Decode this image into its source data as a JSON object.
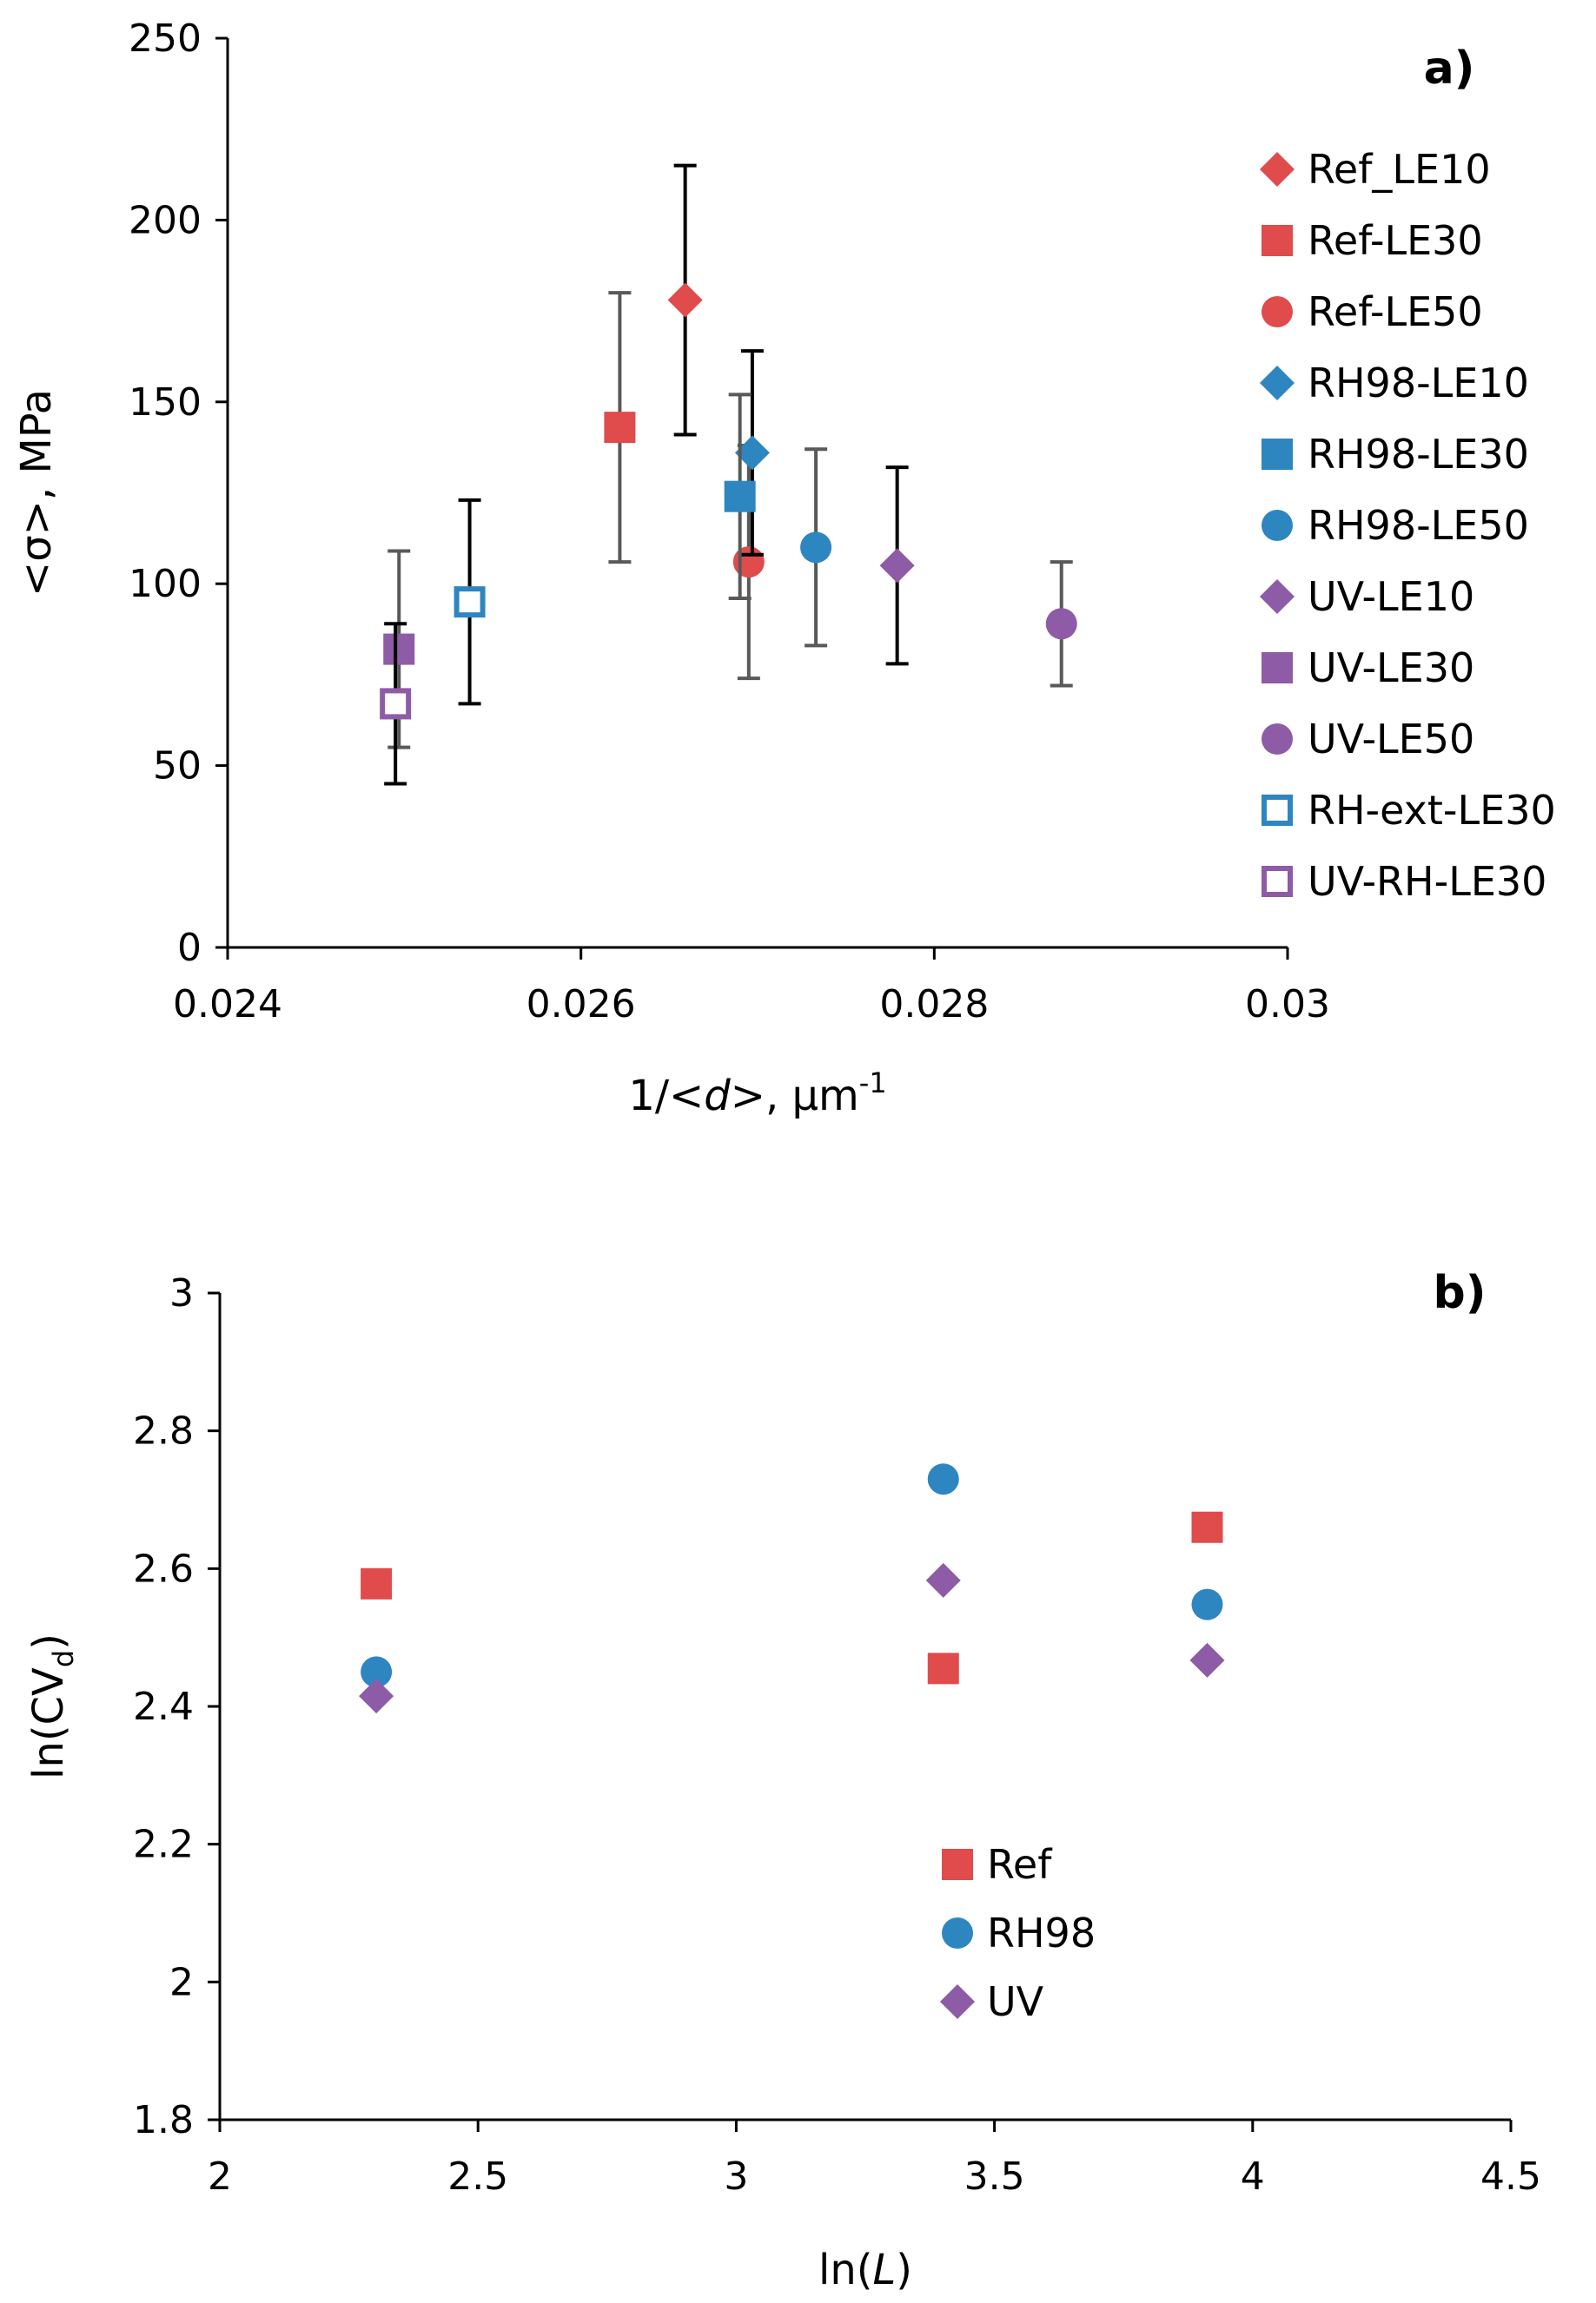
{
  "chart_data": [
    {
      "type": "scatter",
      "panel_label": "a)",
      "xlabel": {
        "pre": "1/<",
        "ital": "d",
        "post": ">, μm",
        "sup": "-1"
      },
      "ylabel": "<σ>, MPa",
      "xlim": [
        0.024,
        0.03
      ],
      "ylim": [
        0,
        250
      ],
      "x_ticks": [
        "0.024",
        "0.026",
        "0.028",
        "0.03"
      ],
      "x_tick_values": [
        0.024,
        0.026,
        0.028,
        0.03
      ],
      "y_ticks": [
        "0",
        "50",
        "100",
        "150",
        "200",
        "250"
      ],
      "y_tick_values": [
        0,
        50,
        100,
        150,
        200,
        250
      ],
      "grid": false,
      "legend_position": "right",
      "series": [
        {
          "name": "Ref_LE10",
          "marker": "diamond",
          "color": "#E04B4B",
          "filled": true,
          "err_color": "#000000",
          "x": 0.02659,
          "y": 178,
          "err": 37
        },
        {
          "name": "Ref-LE30",
          "marker": "square",
          "color": "#E04B4B",
          "filled": true,
          "err_color": "#595959",
          "x": 0.02622,
          "y": 143,
          "err": 37
        },
        {
          "name": "Ref-LE50",
          "marker": "circle",
          "color": "#E04B4B",
          "filled": true,
          "err_color": "#595959",
          "x": 0.02695,
          "y": 106,
          "err": 32
        },
        {
          "name": "RH98-LE10",
          "marker": "diamond",
          "color": "#2E86C1",
          "filled": true,
          "err_color": "#000000",
          "x": 0.02697,
          "y": 136,
          "err": 28
        },
        {
          "name": "RH98-LE30",
          "marker": "square",
          "color": "#2E86C1",
          "filled": true,
          "err_color": "#595959",
          "x": 0.0269,
          "y": 124,
          "err": 28
        },
        {
          "name": "RH98-LE50",
          "marker": "circle",
          "color": "#2E86C1",
          "filled": true,
          "err_color": "#595959",
          "x": 0.02733,
          "y": 110,
          "err": 27
        },
        {
          "name": "UV-LE10",
          "marker": "diamond",
          "color": "#8E5BA6",
          "filled": true,
          "err_color": "#000000",
          "x": 0.02779,
          "y": 105,
          "err": 27
        },
        {
          "name": "UV-LE30",
          "marker": "square",
          "color": "#8E5BA6",
          "filled": true,
          "err_color": "#595959",
          "x": 0.02497,
          "y": 82,
          "err": 27
        },
        {
          "name": "UV-LE50",
          "marker": "circle",
          "color": "#8E5BA6",
          "filled": true,
          "err_color": "#595959",
          "x": 0.02872,
          "y": 89,
          "err": 17
        },
        {
          "name": "RH-ext-LE30",
          "marker": "square",
          "color": "#2E86C1",
          "filled": false,
          "err_color": "#000000",
          "x": 0.02537,
          "y": 95,
          "err": 28
        },
        {
          "name": "UV-RH-LE30",
          "marker": "square",
          "color": "#8E5BA6",
          "filled": false,
          "err_color": "#000000",
          "x": 0.02495,
          "y": 67,
          "err": 22
        }
      ]
    },
    {
      "type": "scatter",
      "panel_label": "b)",
      "xlabel": {
        "pre": "ln(",
        "ital": "L",
        "post": ")",
        "sup": ""
      },
      "ylabel": {
        "pre": "ln(CV",
        "sub": "d",
        "post": ")"
      },
      "xlim": [
        2,
        4.5
      ],
      "ylim": [
        1.8,
        3
      ],
      "x_ticks": [
        "2",
        "2.5",
        "3",
        "3.5",
        "4",
        "4.5"
      ],
      "x_tick_values": [
        2,
        2.5,
        3,
        3.5,
        4,
        4.5
      ],
      "y_ticks": [
        "1.8",
        "2",
        "2.2",
        "2.4",
        "2.6",
        "2.8",
        "3"
      ],
      "y_tick_values": [
        1.8,
        2,
        2.2,
        2.4,
        2.6,
        2.8,
        3
      ],
      "grid": false,
      "legend_position": "center",
      "series": [
        {
          "name": "Ref",
          "marker": "square",
          "color": "#E04B4B",
          "filled": true,
          "x": [
            2.303,
            3.401,
            3.912
          ],
          "y": [
            2.578,
            2.455,
            2.66
          ]
        },
        {
          "name": "RH98",
          "marker": "circle",
          "color": "#2E86C1",
          "filled": true,
          "x": [
            2.303,
            3.401,
            3.912
          ],
          "y": [
            2.45,
            2.73,
            2.548
          ]
        },
        {
          "name": "UV",
          "marker": "diamond",
          "color": "#8E5BA6",
          "filled": true,
          "x": [
            2.303,
            3.401,
            3.912
          ],
          "y": [
            2.415,
            2.583,
            2.467
          ]
        }
      ]
    }
  ]
}
